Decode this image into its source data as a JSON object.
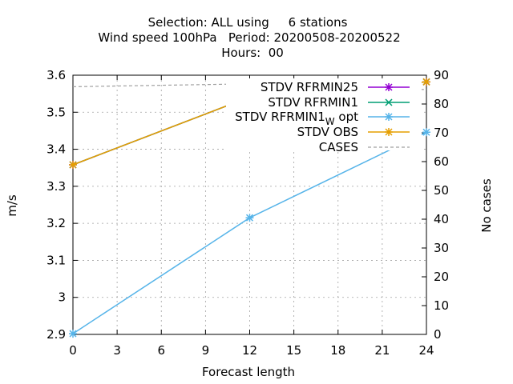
{
  "chart_data": {
    "type": "line",
    "title": [
      "Selection: ALL using     6 stations",
      "Wind speed 100hPa   Period: 20200508-20200522",
      "Hours:  00"
    ],
    "xlabel": "Forecast length",
    "ylabel": "m/s",
    "y2label": "No cases",
    "xlim": [
      0,
      24
    ],
    "ylim": [
      2.9,
      3.6
    ],
    "y2lim": [
      0,
      90
    ],
    "xticks": [
      "0",
      "3",
      "6",
      "9",
      "12",
      "15",
      "18",
      "21",
      "24"
    ],
    "yticks": [
      "2.9",
      "3",
      "3.1",
      "3.2",
      "3.3",
      "3.4",
      "3.5",
      "3.6"
    ],
    "y2ticks": [
      "0",
      "10",
      "20",
      "30",
      "40",
      "50",
      "60",
      "70",
      "80",
      "90"
    ],
    "grid": true,
    "legend_position": "top-right",
    "series": [
      {
        "name": "STDV RFRMIN25",
        "axis": "y",
        "color": "#9400d3",
        "marker": "star",
        "x": [
          0,
          12,
          24
        ],
        "values": [
          3.358,
          3.541,
          3.582
        ]
      },
      {
        "name": "STDV RFRMIN1",
        "axis": "y",
        "color": "#009e73",
        "marker": "x",
        "x": [
          0,
          12,
          24
        ],
        "values": [
          3.358,
          3.541,
          3.582
        ]
      },
      {
        "name": "STDV RFRMIN1_W opt",
        "axis": "y",
        "color": "#56b4e9",
        "marker": "star",
        "x": [
          0,
          12,
          24
        ],
        "values": [
          2.902,
          3.215,
          3.446
        ]
      },
      {
        "name": "STDV OBS",
        "axis": "y",
        "color": "#e69f00",
        "marker": "star",
        "x": [
          0,
          12,
          24
        ],
        "values": [
          3.358,
          3.541,
          3.582
        ]
      },
      {
        "name": "CASES",
        "axis": "y2",
        "color": "#a0a0a0",
        "dashed": true,
        "x": [
          0,
          12,
          24
        ],
        "values": [
          86,
          87,
          85
        ]
      }
    ]
  }
}
